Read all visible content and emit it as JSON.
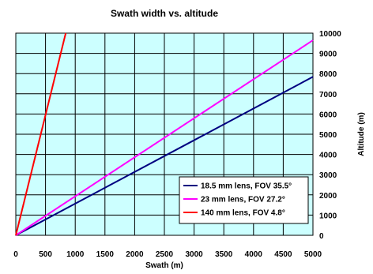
{
  "chart_data": {
    "type": "line",
    "title": "Swath width vs. altitude",
    "xlabel": "Swath (m)",
    "ylabel": "Altitude (m)",
    "xlim": [
      0,
      5000
    ],
    "ylim": [
      0,
      10000
    ],
    "x_ticks": [
      0,
      500,
      1000,
      1500,
      2000,
      2500,
      3000,
      3500,
      4000,
      4500,
      5000
    ],
    "y_ticks": [
      0,
      1000,
      2000,
      3000,
      4000,
      5000,
      6000,
      7000,
      8000,
      9000,
      10000
    ],
    "y_axis_position": "right",
    "grid": true,
    "plot_background": "#ccffff",
    "legend_position": "bottom-right",
    "series": [
      {
        "name": "18.5 mm lens, FOV 35.5°",
        "color": "#000080",
        "x": [
          0,
          5000
        ],
        "y": [
          0,
          7840
        ]
      },
      {
        "name": "23 mm lens, FOV 27.2°",
        "color": "#ff00ff",
        "x": [
          0,
          5000
        ],
        "y": [
          0,
          9650
        ]
      },
      {
        "name": "140 mm lens, FOV 4.8°",
        "color": "#ff0000",
        "x": [
          0,
          840
        ],
        "y": [
          0,
          10000
        ]
      }
    ]
  }
}
